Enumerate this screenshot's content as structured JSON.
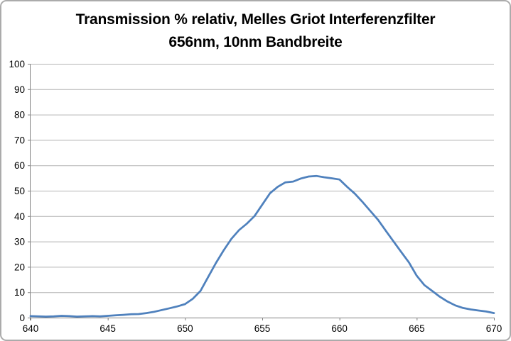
{
  "title": {
    "line1": "Transmission % relativ, Melles Griot Interferenzfilter",
    "line2": "656nm, 10nm Bandbreite"
  },
  "chart_data": {
    "type": "line",
    "title": "Transmission % relativ, Melles Griot Interferenzfilter 656nm, 10nm Bandbreite",
    "xlabel": "",
    "ylabel": "",
    "xlim": [
      640,
      670
    ],
    "ylim": [
      0,
      100
    ],
    "x_ticks": [
      640,
      645,
      650,
      655,
      660,
      665,
      670
    ],
    "y_ticks": [
      0,
      10,
      20,
      30,
      40,
      50,
      60,
      70,
      80,
      90,
      100
    ],
    "grid": "horizontal",
    "legend": "none",
    "series": [
      {
        "name": "Transmission % relativ",
        "color": "#4F81BD",
        "x_start": 640,
        "x_step": 0.5,
        "values": [
          0.6,
          0.5,
          0.4,
          0.5,
          0.7,
          0.6,
          0.4,
          0.5,
          0.6,
          0.5,
          0.7,
          0.9,
          1.1,
          1.3,
          1.4,
          1.8,
          2.3,
          3.0,
          3.7,
          4.4,
          5.3,
          7.4,
          10.5,
          16.0,
          21.5,
          26.5,
          31.0,
          34.5,
          37.0,
          40.0,
          44.5,
          49.0,
          51.5,
          53.3,
          53.6,
          54.8,
          55.6,
          55.8,
          55.3,
          54.9,
          54.4,
          51.5,
          48.8,
          45.5,
          42.0,
          38.5,
          34.2,
          30.0,
          25.8,
          21.7,
          16.5,
          12.8,
          10.5,
          8.2,
          6.3,
          4.8,
          3.8,
          3.2,
          2.8,
          2.4,
          1.8
        ]
      }
    ]
  },
  "style": {
    "line_color": "#4F81BD",
    "gridline_color": "#b3b3b3",
    "axis_color": "#808080",
    "tick_label_color": "#000000",
    "frame_border_color": "#ababab",
    "background_color": "#ffffff"
  }
}
